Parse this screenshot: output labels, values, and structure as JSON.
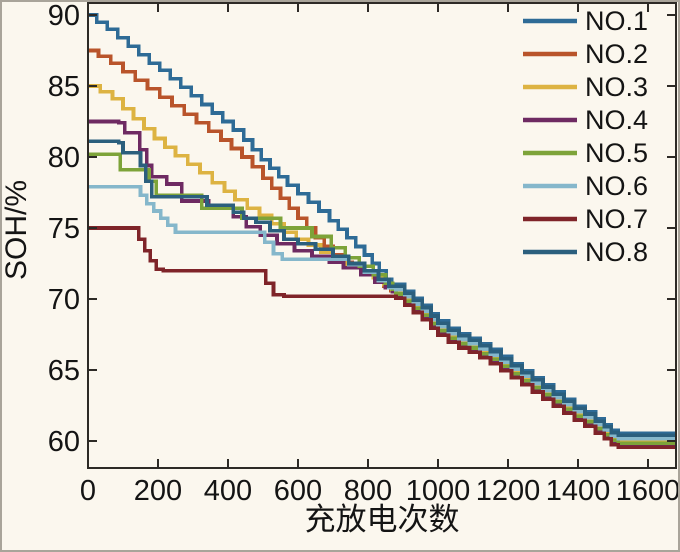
{
  "figure": {
    "background": "#fbf7ee",
    "frame_color": "#a9a49a",
    "axis_color": "#2d2a26",
    "text_color": "#141414"
  },
  "chart_data": {
    "type": "line",
    "subtype": "step",
    "title": "",
    "xlabel": "充放电次数",
    "ylabel": "SOH/%",
    "xlim": [
      0,
      1680
    ],
    "ylim": [
      58.1,
      90.85
    ],
    "x_ticks": [
      0,
      200,
      400,
      600,
      800,
      1000,
      1200,
      1400,
      1600
    ],
    "y_ticks": [
      60,
      65,
      70,
      75,
      80,
      85,
      90
    ],
    "grid": false,
    "legend_position": "top-right",
    "common_tail": [
      [
        880,
        70.5
      ],
      [
        905,
        70.0
      ],
      [
        930,
        69.5
      ],
      [
        955,
        69.0
      ],
      [
        980,
        68.4
      ],
      [
        1000,
        67.9
      ],
      [
        1030,
        67.4
      ],
      [
        1060,
        67.0
      ],
      [
        1090,
        66.7
      ],
      [
        1120,
        66.3
      ],
      [
        1150,
        65.9
      ],
      [
        1180,
        65.4
      ],
      [
        1210,
        64.9
      ],
      [
        1240,
        64.4
      ],
      [
        1270,
        63.9
      ],
      [
        1300,
        63.4
      ],
      [
        1330,
        62.9
      ],
      [
        1360,
        62.4
      ],
      [
        1390,
        61.9
      ],
      [
        1420,
        61.5
      ],
      [
        1450,
        61.0
      ],
      [
        1475,
        60.6
      ],
      [
        1495,
        60.2
      ],
      [
        1515,
        60.0
      ],
      [
        1680,
        60.0
      ]
    ],
    "series": [
      {
        "name": "NO.1",
        "color": "#2e6b96",
        "tail_offset": 0.55,
        "tail_from": 880,
        "points": [
          [
            0,
            90
          ],
          [
            25,
            89.5
          ],
          [
            55,
            89
          ],
          [
            85,
            88.4
          ],
          [
            115,
            87.8
          ],
          [
            145,
            87.2
          ],
          [
            175,
            86.6
          ],
          [
            205,
            86.1
          ],
          [
            235,
            85.5
          ],
          [
            265,
            84.9
          ],
          [
            295,
            84.3
          ],
          [
            325,
            83.7
          ],
          [
            355,
            83.1
          ],
          [
            385,
            82.5
          ],
          [
            415,
            81.9
          ],
          [
            445,
            81.2
          ],
          [
            470,
            80.5
          ],
          [
            495,
            79.8
          ],
          [
            520,
            79.2
          ],
          [
            545,
            78.6
          ],
          [
            570,
            78.0
          ],
          [
            600,
            77.4
          ],
          [
            630,
            76.8
          ],
          [
            660,
            76.2
          ],
          [
            690,
            75.5
          ],
          [
            715,
            74.9
          ],
          [
            740,
            74.3
          ],
          [
            765,
            73.7
          ],
          [
            790,
            73.1
          ],
          [
            812,
            72.5
          ],
          [
            832,
            72.0
          ],
          [
            852,
            71.4
          ],
          [
            868,
            70.9
          ]
        ]
      },
      {
        "name": "NO.2",
        "color": "#b9542b",
        "tail_offset": -0.05,
        "tail_from": 880,
        "points": [
          [
            0,
            87.5
          ],
          [
            30,
            87.1
          ],
          [
            65,
            86.6
          ],
          [
            100,
            86.0
          ],
          [
            135,
            85.4
          ],
          [
            170,
            84.8
          ],
          [
            205,
            84.2
          ],
          [
            240,
            83.6
          ],
          [
            275,
            83.0
          ],
          [
            310,
            82.4
          ],
          [
            345,
            81.8
          ],
          [
            380,
            81.2
          ],
          [
            410,
            80.6
          ],
          [
            440,
            80.0
          ],
          [
            470,
            79.3
          ],
          [
            500,
            78.5
          ],
          [
            525,
            77.8
          ],
          [
            550,
            77.1
          ],
          [
            575,
            76.4
          ],
          [
            600,
            75.7
          ],
          [
            625,
            75.0
          ],
          [
            650,
            74.3
          ],
          [
            675,
            73.7
          ],
          [
            700,
            73.1
          ],
          [
            725,
            72.6
          ],
          [
            755,
            72.2
          ],
          [
            790,
            71.8
          ],
          [
            820,
            71.3
          ],
          [
            845,
            70.9
          ],
          [
            865,
            70.6
          ]
        ]
      },
      {
        "name": "NO.3",
        "color": "#ddb342",
        "tail_offset": 0.0,
        "tail_from": 880,
        "points": [
          [
            0,
            85
          ],
          [
            35,
            84.6
          ],
          [
            70,
            84.1
          ],
          [
            100,
            83.4
          ],
          [
            130,
            82.7
          ],
          [
            160,
            82.0
          ],
          [
            190,
            81.3
          ],
          [
            220,
            80.7
          ],
          [
            250,
            80.1
          ],
          [
            285,
            79.5
          ],
          [
            320,
            78.9
          ],
          [
            355,
            78.2
          ],
          [
            390,
            77.6
          ],
          [
            420,
            77.0
          ],
          [
            455,
            76.4
          ],
          [
            490,
            75.9
          ],
          [
            525,
            75.3
          ],
          [
            560,
            74.7
          ],
          [
            595,
            74.2
          ],
          [
            630,
            73.8
          ],
          [
            665,
            73.3
          ],
          [
            700,
            72.8
          ],
          [
            740,
            72.4
          ],
          [
            780,
            72.0
          ],
          [
            815,
            71.5
          ],
          [
            845,
            71.0
          ],
          [
            868,
            70.6
          ]
        ]
      },
      {
        "name": "NO.4",
        "color": "#6e2a62",
        "tail_offset": -0.3,
        "tail_from": 880,
        "points": [
          [
            0,
            82.5
          ],
          [
            88,
            82.4
          ],
          [
            105,
            81.7
          ],
          [
            148,
            80.5
          ],
          [
            168,
            79.4
          ],
          [
            182,
            78.6
          ],
          [
            225,
            78.1
          ],
          [
            268,
            76.9
          ],
          [
            345,
            76.4
          ],
          [
            415,
            75.8
          ],
          [
            452,
            75.1
          ],
          [
            492,
            74.5
          ],
          [
            540,
            73.9
          ],
          [
            590,
            73.4
          ],
          [
            640,
            73.0
          ],
          [
            690,
            72.6
          ],
          [
            730,
            72.2
          ],
          [
            780,
            71.7
          ],
          [
            820,
            71.2
          ],
          [
            850,
            70.8
          ],
          [
            870,
            70.5
          ]
        ]
      },
      {
        "name": "NO.5",
        "color": "#7da339",
        "tail_offset": -0.15,
        "tail_from": 880,
        "points": [
          [
            0,
            80.2
          ],
          [
            92,
            79.1
          ],
          [
            175,
            78.3
          ],
          [
            195,
            77.3
          ],
          [
            325,
            76.4
          ],
          [
            440,
            75.7
          ],
          [
            550,
            75.0
          ],
          [
            640,
            74.4
          ],
          [
            695,
            73.6
          ],
          [
            735,
            72.9
          ],
          [
            775,
            72.3
          ],
          [
            815,
            71.7
          ],
          [
            850,
            71.1
          ],
          [
            870,
            70.7
          ]
        ]
      },
      {
        "name": "NO.6",
        "color": "#85b7cb",
        "tail_offset": 0.15,
        "tail_from": 880,
        "points": [
          [
            0,
            77.9
          ],
          [
            150,
            77.3
          ],
          [
            168,
            76.7
          ],
          [
            188,
            76.2
          ],
          [
            208,
            75.7
          ],
          [
            228,
            75.2
          ],
          [
            250,
            74.7
          ],
          [
            505,
            74.0
          ],
          [
            530,
            73.2
          ],
          [
            555,
            72.8
          ],
          [
            700,
            72.8
          ],
          [
            745,
            72.4
          ],
          [
            790,
            71.9
          ],
          [
            830,
            71.3
          ],
          [
            860,
            70.8
          ]
        ]
      },
      {
        "name": "NO.7",
        "color": "#7f2429",
        "tail_offset": -0.45,
        "tail_from": 880,
        "points": [
          [
            0,
            75.0
          ],
          [
            145,
            74.2
          ],
          [
            162,
            73.4
          ],
          [
            178,
            72.7
          ],
          [
            195,
            72.1
          ],
          [
            215,
            72.0
          ],
          [
            490,
            72.0
          ],
          [
            508,
            71.1
          ],
          [
            530,
            70.3
          ],
          [
            560,
            70.2
          ],
          [
            870,
            70.2
          ]
        ]
      },
      {
        "name": "NO.8",
        "color": "#2b5f7d",
        "tail_offset": 0.4,
        "tail_from": 880,
        "points": [
          [
            0,
            81.1
          ],
          [
            88,
            81.0
          ],
          [
            100,
            80.3
          ],
          [
            150,
            79.4
          ],
          [
            165,
            78.3
          ],
          [
            182,
            77.2
          ],
          [
            340,
            76.6
          ],
          [
            415,
            76.1
          ],
          [
            445,
            75.7
          ],
          [
            480,
            75.4
          ],
          [
            520,
            74.8
          ],
          [
            560,
            74.2
          ],
          [
            600,
            73.9
          ],
          [
            650,
            73.5
          ],
          [
            700,
            73.0
          ],
          [
            745,
            72.5
          ],
          [
            790,
            72.0
          ],
          [
            830,
            71.4
          ],
          [
            860,
            70.9
          ]
        ]
      }
    ]
  }
}
